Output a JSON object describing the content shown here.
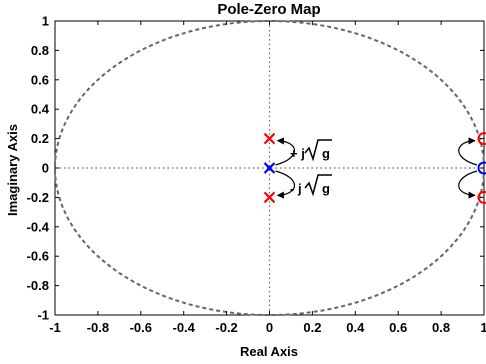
{
  "chart_data": {
    "type": "scatter",
    "title": "Pole-Zero Map",
    "xlabel": "Real Axis",
    "ylabel": "Imaginary Axis",
    "xlim": [
      -1,
      1
    ],
    "ylim": [
      -1,
      1
    ],
    "xticks": [
      "-1",
      "-0.8",
      "-0.6",
      "-0.4",
      "-0.2",
      "0",
      "0.2",
      "0.4",
      "0.6",
      "0.8",
      "1"
    ],
    "yticks": [
      "-1",
      "-0.8",
      "-0.6",
      "-0.4",
      "-0.2",
      "0",
      "0.2",
      "0.4",
      "0.6",
      "0.8",
      "1"
    ],
    "unit_circle": true,
    "zero_lines": true,
    "poles": [
      {
        "x": 0,
        "y": 0.2,
        "color": "#ff0000"
      },
      {
        "x": 0,
        "y": 0,
        "color": "#0000ff"
      },
      {
        "x": 0,
        "y": -0.2,
        "color": "#ff0000"
      }
    ],
    "zeros": [
      {
        "x": 1,
        "y": 0.2,
        "color": "#ff0000"
      },
      {
        "x": 1,
        "y": 0,
        "color": "#0000ff"
      },
      {
        "x": 1,
        "y": -0.2,
        "color": "#ff0000"
      }
    ],
    "annotations": [
      {
        "sign": "+ j",
        "radicand": "g"
      },
      {
        "sign": "- j",
        "radicand": "g"
      }
    ]
  }
}
